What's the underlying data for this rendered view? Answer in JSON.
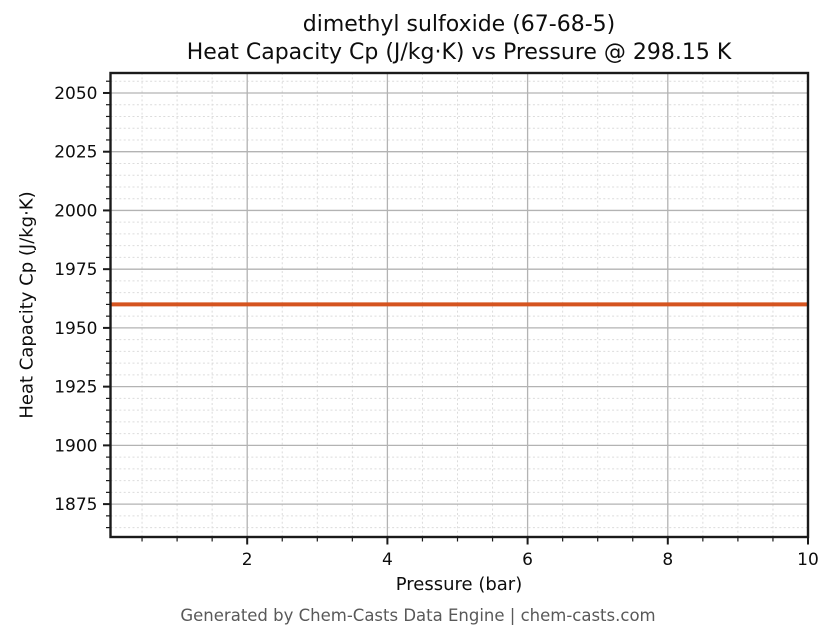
{
  "figure": {
    "footer": "Generated by Chem-Casts Data Engine | chem-casts.com"
  },
  "chart_data": {
    "type": "line",
    "title_lines": [
      "dimethyl sulfoxide (67-68-5)",
      "Heat Capacity Cp (J/kg·K) vs Pressure @ 298.15 K"
    ],
    "xlabel": "Pressure (bar)",
    "ylabel": "Heat Capacity Cp (J/kg·K)",
    "xlim": [
      0.05,
      10
    ],
    "ylim": [
      1861,
      2058.5
    ],
    "x_major_ticks": [
      2,
      4,
      6,
      8,
      10
    ],
    "x_minor_step": 0.5,
    "y_major_ticks": [
      1875,
      1900,
      1925,
      1950,
      1975,
      2000,
      2025,
      2050
    ],
    "y_minor_step": 5,
    "grid": {
      "major": "solid",
      "minor": "dotted"
    },
    "legend_position": "none",
    "series": [
      {
        "name": "Heat Capacity Cp",
        "color": "#d5541f",
        "x": [
          0.05,
          10
        ],
        "y": [
          1960,
          1960
        ],
        "note": "constant value ≈ 1960 J/kg·K across 0–10 bar"
      }
    ],
    "colors": {
      "line": "#d5541f",
      "major_grid": "#b3b3b3",
      "minor_grid": "#dcdcdc",
      "spine": "#1a1a1a",
      "footer_text": "#595959",
      "background": "#ffffff"
    }
  }
}
